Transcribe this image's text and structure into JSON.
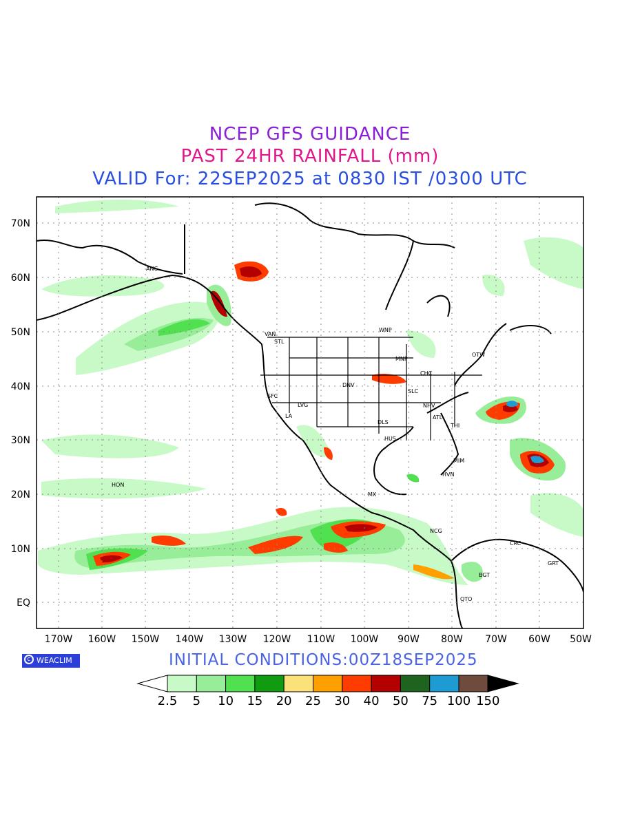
{
  "header": {
    "line1": "NCEP GFS GUIDANCE",
    "line2": "PAST 24HR RAINFALL (mm)",
    "line3": "VALID For: 22SEP2025 at 0830 IST /0300 UTC"
  },
  "footer": {
    "logo_text": "WEACLIM",
    "initial_conditions": "INITIAL  CONDITIONS:00Z18SEP2025"
  },
  "map": {
    "lat_labels": [
      "70N",
      "60N",
      "50N",
      "40N",
      "30N",
      "20N",
      "10N",
      "EQ"
    ],
    "lon_labels": [
      "170W",
      "160W",
      "150W",
      "140W",
      "130W",
      "120W",
      "110W",
      "100W",
      "90W",
      "80W",
      "70W",
      "60W",
      "50W"
    ],
    "cities": [
      "ANC",
      "VAN",
      "STL",
      "WNP",
      "MNP",
      "OTW",
      "CHC",
      "DNV",
      "SFC",
      "LVG",
      "LA",
      "SLC",
      "NHV",
      "ATL",
      "DLS",
      "HUS",
      "THI",
      "MIM",
      "HVN",
      "HON",
      "MX",
      "NCG",
      "CRC",
      "GRT",
      "BGT",
      "QTO"
    ]
  },
  "legend": {
    "labels": [
      "2.5",
      "5",
      "10",
      "15",
      "20",
      "25",
      "30",
      "40",
      "50",
      "75",
      "100",
      "150"
    ],
    "colors": [
      "#c8fac8",
      "#98ee98",
      "#50e050",
      "#109b10",
      "#fae17a",
      "#ffa000",
      "#ff3c00",
      "#b40000",
      "#1e641e",
      "#1e9bd2",
      "#6e4b3c"
    ]
  }
}
